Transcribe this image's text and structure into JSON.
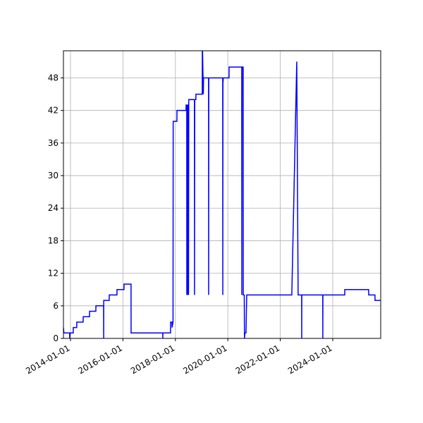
{
  "chart_data": {
    "type": "line",
    "x": [
      "2013-09-25",
      "2013-10-01",
      "2013-12-20",
      "2013-12-21",
      "2013-12-28",
      "2014-02-08",
      "2014-02-09",
      "2014-03-29",
      "2014-03-30",
      "2014-06-26",
      "2014-06-27",
      "2014-09-23",
      "2014-09-24",
      "2014-12-20",
      "2014-12-21",
      "2015-04-07",
      "2015-04-08",
      "2015-04-09",
      "2015-06-24",
      "2015-06-25",
      "2015-10-10",
      "2015-10-11",
      "2016-01-16",
      "2016-01-17",
      "2016-04-23",
      "2016-04-24",
      "2017-07-09",
      "2017-07-10",
      "2017-07-11",
      "2017-10-25",
      "2017-10-26",
      "2017-11-14",
      "2017-11-15",
      "2017-11-29",
      "2017-12-01",
      "2018-01-22",
      "2018-01-23",
      "2018-05-29",
      "2018-05-30",
      "2018-06-08",
      "2018-06-09",
      "2018-06-12",
      "2018-06-20",
      "2018-06-21",
      "2018-06-24",
      "2018-07-02",
      "2018-07-03",
      "2018-07-06",
      "2018-09-23",
      "2018-09-24",
      "2018-09-27",
      "2018-10-13",
      "2018-10-14",
      "2019-01-10",
      "2019-01-11",
      "2019-01-25",
      "2019-01-28",
      "2019-04-08",
      "2019-04-09",
      "2019-04-11",
      "2019-10-22",
      "2019-10-23",
      "2019-10-25",
      "2019-10-30",
      "2020-01-18",
      "2020-01-19",
      "2020-07-13",
      "2020-07-14",
      "2020-07-17",
      "2020-08-02",
      "2020-08-03",
      "2020-08-17",
      "2020-08-20",
      "2020-08-25",
      "2020-09-10",
      "2020-09-20",
      "2022-06-10",
      "2022-08-18",
      "2022-09-06",
      "2022-10-25",
      "2022-10-26",
      "2022-10-27",
      "2023-08-15",
      "2023-08-16",
      "2023-08-17",
      "2024-06-16",
      "2024-06-17",
      "2025-05-15",
      "2025-05-16",
      "2025-08-11",
      "2025-08-12",
      "2025-10-30"
    ],
    "series": [
      {
        "color": "#0000ff",
        "values": [
          2,
          1,
          1,
          0,
          1,
          1,
          2,
          2,
          3,
          3,
          4,
          4,
          5,
          5,
          6,
          6,
          0,
          7,
          7,
          8,
          8,
          9,
          9,
          10,
          10,
          1,
          1,
          0,
          1,
          1,
          3,
          3,
          2,
          3,
          40,
          40,
          42,
          42,
          43,
          43,
          8,
          43,
          43,
          8,
          43,
          43,
          8,
          44,
          44,
          8,
          44,
          44,
          45,
          45,
          55,
          45,
          48,
          48,
          8,
          48,
          48,
          8,
          47,
          48,
          48,
          50,
          50,
          8,
          50,
          50,
          8,
          8,
          0,
          1,
          1,
          8,
          8,
          51,
          8,
          8,
          0,
          8,
          8,
          0,
          8,
          8,
          9,
          9,
          8,
          8,
          7,
          7
        ]
      }
    ],
    "xlim": [
      "2013-09-25",
      "2025-10-30"
    ],
    "xticks": [
      "2014-01-01",
      "2016-01-01",
      "2018-01-01",
      "2020-01-01",
      "2022-01-01",
      "2024-01-01"
    ],
    "ylim": [
      0,
      53
    ],
    "yticks": [
      0,
      6,
      12,
      18,
      24,
      30,
      36,
      42,
      48
    ],
    "grid": true
  }
}
